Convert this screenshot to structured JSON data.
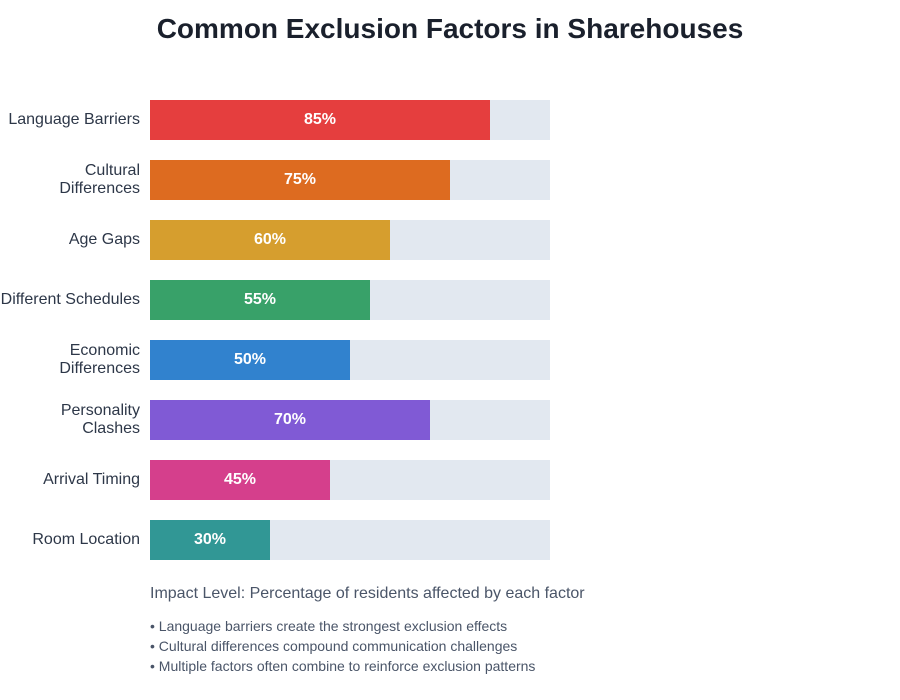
{
  "chart_data": {
    "type": "bar",
    "orientation": "horizontal",
    "title": "Common Exclusion Factors in Sharehouses",
    "categories": [
      "Language Barriers",
      "Cultural Differences",
      "Age Gaps",
      "Different Schedules",
      "Economic Differences",
      "Personality Clashes",
      "Arrival Timing",
      "Room Location"
    ],
    "values": [
      85,
      75,
      60,
      55,
      50,
      70,
      45,
      30
    ],
    "value_labels": [
      "85%",
      "75%",
      "60%",
      "55%",
      "50%",
      "70%",
      "45%",
      "30%"
    ],
    "colors": [
      "#e53e3e",
      "#dd6b20",
      "#d69e2e",
      "#38a169",
      "#3182ce",
      "#805ad5",
      "#d53f8c",
      "#319795"
    ],
    "track_color": "#e2e8f0",
    "xlim": [
      0,
      100
    ],
    "grid": false,
    "caption": "Impact Level: Percentage of residents affected by each factor",
    "notes": [
      "• Language barriers create the strongest exclusion effects",
      "• Cultural differences compound communication challenges",
      "• Multiple factors often combine to reinforce exclusion patterns"
    ]
  }
}
